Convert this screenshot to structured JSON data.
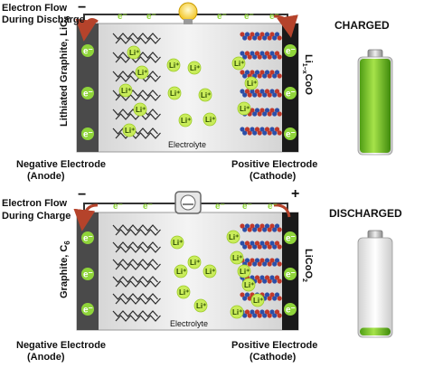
{
  "top": {
    "minus_sign": "−",
    "flow_label_line1": "Electron Flow",
    "flow_label_line2": "During Discharge",
    "anode_side_label": "Lithiated Graphite, LiC",
    "anode_side_sub": "6",
    "cathode_side_pre": "Li",
    "cathode_side_sub": "1−x",
    "cathode_side_post": "CoO",
    "electrolyte_label": "Electrolyte",
    "negative_electrode": "Negative Electrode",
    "anode": "(Anode)",
    "positive_electrode": "Positive Electrode",
    "cathode": "(Cathode)",
    "electron_symbol": "e⁻",
    "lithium_ion_symbol": "Li⁺"
  },
  "bottom": {
    "minus_sign": "−",
    "plus_sign": "+",
    "flow_label_line1": "Electron Flow",
    "flow_label_line2": "During Charge",
    "anode_side_label": "Graphite, C",
    "anode_side_sub": "6",
    "cathode_side_pre": "LiCoO",
    "cathode_side_sub": "2",
    "electrolyte_label": "Electrolyte",
    "negative_electrode": "Negative Electrode",
    "anode": "(Anode)",
    "positive_electrode": "Positive Electrode",
    "cathode": "(Cathode)",
    "electron_symbol": "e⁻",
    "lithium_ion_symbol": "Li⁺"
  },
  "status": {
    "charged": "CHARGED",
    "discharged": "DISCHARGED",
    "charged_fill_fraction": 1.0,
    "discharged_fill_fraction": 0.08
  },
  "colors": {
    "electron": "#8fd43a",
    "lithium_ion": "#c9ec5a",
    "battery_fill": "#7cc829",
    "arrow": "#b5432b",
    "cathode_red": "#c0392b",
    "cathode_blue": "#2c4fa8",
    "graphite": "#2b2b2b"
  },
  "icons": {
    "top_device": "light-bulb-icon",
    "bottom_device": "power-source-icon"
  }
}
